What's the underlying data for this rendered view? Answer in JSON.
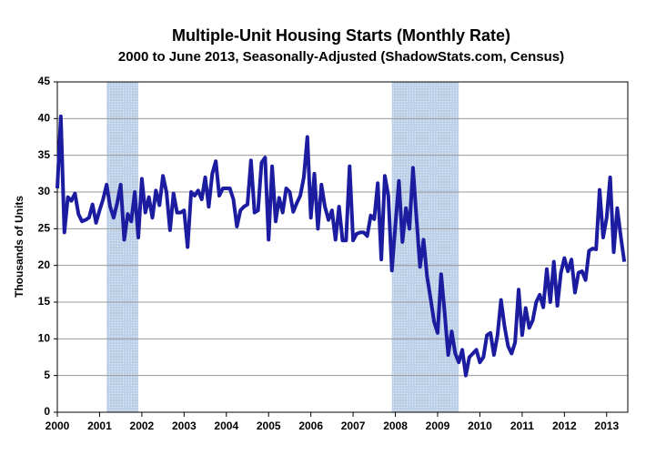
{
  "chart_data": {
    "type": "line",
    "title": "Multiple-Unit Housing Starts (Monthly Rate)",
    "subtitle": "2000 to June 2013, Seasonally-Adjusted (ShadowStats.com, Census)",
    "y_label": "Thousands of Units",
    "x": [
      2000,
      2000.083,
      2000.167,
      2000.25,
      2000.333,
      2000.417,
      2000.5,
      2000.583,
      2000.667,
      2000.75,
      2000.833,
      2000.917,
      2001,
      2001.083,
      2001.167,
      2001.25,
      2001.333,
      2001.417,
      2001.5,
      2001.583,
      2001.667,
      2001.75,
      2001.833,
      2001.917,
      2002,
      2002.083,
      2002.167,
      2002.25,
      2002.333,
      2002.417,
      2002.5,
      2002.583,
      2002.667,
      2002.75,
      2002.833,
      2002.917,
      2003,
      2003.083,
      2003.167,
      2003.25,
      2003.333,
      2003.417,
      2003.5,
      2003.583,
      2003.667,
      2003.75,
      2003.833,
      2003.917,
      2004,
      2004.083,
      2004.167,
      2004.25,
      2004.333,
      2004.417,
      2004.5,
      2004.583,
      2004.667,
      2004.75,
      2004.833,
      2004.917,
      2005,
      2005.083,
      2005.167,
      2005.25,
      2005.333,
      2005.417,
      2005.5,
      2005.583,
      2005.667,
      2005.75,
      2005.833,
      2005.917,
      2006,
      2006.083,
      2006.167,
      2006.25,
      2006.333,
      2006.417,
      2006.5,
      2006.583,
      2006.667,
      2006.75,
      2006.833,
      2006.917,
      2007,
      2007.083,
      2007.167,
      2007.25,
      2007.333,
      2007.417,
      2007.5,
      2007.583,
      2007.667,
      2007.75,
      2007.833,
      2007.917,
      2008,
      2008.083,
      2008.167,
      2008.25,
      2008.333,
      2008.417,
      2008.5,
      2008.583,
      2008.667,
      2008.75,
      2008.833,
      2008.917,
      2009,
      2009.083,
      2009.167,
      2009.25,
      2009.333,
      2009.417,
      2009.5,
      2009.583,
      2009.667,
      2009.75,
      2009.833,
      2009.917,
      2010,
      2010.083,
      2010.167,
      2010.25,
      2010.333,
      2010.417,
      2010.5,
      2010.583,
      2010.667,
      2010.75,
      2010.833,
      2010.917,
      2011,
      2011.083,
      2011.167,
      2011.25,
      2011.333,
      2011.417,
      2011.5,
      2011.583,
      2011.667,
      2011.75,
      2011.833,
      2011.917,
      2012,
      2012.083,
      2012.167,
      2012.25,
      2012.333,
      2012.417,
      2012.5,
      2012.583,
      2012.667,
      2012.75,
      2012.833,
      2012.917,
      2013,
      2013.083,
      2013.167,
      2013.25,
      2013.333,
      2013.417
    ],
    "values": [
      30.5,
      40.3,
      24.5,
      29.3,
      28.8,
      29.8,
      27,
      26,
      26.2,
      26.5,
      28.3,
      25.8,
      27.5,
      29,
      31,
      28,
      26.5,
      28.5,
      31,
      23.5,
      27,
      26,
      30,
      23.8,
      31.8,
      27.2,
      29.3,
      26.5,
      30.2,
      28.2,
      32.2,
      30,
      24.8,
      29.8,
      27.2,
      27.2,
      27.5,
      22.5,
      30,
      29.5,
      30.2,
      29,
      32,
      28,
      32.5,
      34.2,
      29.5,
      30.5,
      30.5,
      30.5,
      29,
      25.3,
      27.5,
      28,
      28.3,
      34.3,
      27.2,
      27.5,
      34,
      34.7,
      23.5,
      33.5,
      26,
      29.2,
      27.2,
      30.5,
      30,
      27.3,
      28.5,
      29.5,
      32,
      37.5,
      26.5,
      32.5,
      25,
      31,
      28,
      26.2,
      27.5,
      23.5,
      28,
      23.4,
      23.4,
      33.5,
      23.4,
      24.3,
      24.5,
      24.5,
      24,
      26.8,
      26.3,
      31.2,
      20.8,
      32.2,
      29.5,
      19.3,
      25.5,
      31.5,
      23.2,
      27.8,
      25,
      33.3,
      26.4,
      19.8,
      23.5,
      18.5,
      15.5,
      12.3,
      10.8,
      18.8,
      13.5,
      7.8,
      11,
      8,
      6.8,
      8.5,
      5,
      7.5,
      8,
      8.5,
      6.8,
      7.5,
      10.5,
      10.8,
      7.8,
      10.5,
      15.3,
      11.7,
      9,
      8,
      9.5,
      16.7,
      10.5,
      14.2,
      11.5,
      12.5,
      15,
      16,
      14.3,
      19.5,
      15,
      20.5,
      14.5,
      19,
      21,
      19.2,
      20.8,
      16.3,
      19,
      19.2,
      18,
      22,
      22.3,
      22.2,
      30.3,
      23.8,
      26.5,
      32,
      21.8,
      27.8,
      24,
      20.5
    ],
    "color": "#1c1ca0",
    "shaded_ranges": [
      [
        2001.167,
        2001.917
      ],
      [
        2007.917,
        2009.5
      ]
    ],
    "shade_color": "#bcd0e8",
    "xlim": [
      2000,
      2013.5
    ],
    "xticks": [
      2000,
      2001,
      2002,
      2003,
      2004,
      2005,
      2006,
      2007,
      2008,
      2009,
      2010,
      2011,
      2012,
      2013
    ],
    "ylim": [
      0,
      45
    ],
    "yticks": [
      0,
      5,
      10,
      15,
      20,
      25,
      30,
      35,
      40,
      45
    ],
    "grid": true
  }
}
